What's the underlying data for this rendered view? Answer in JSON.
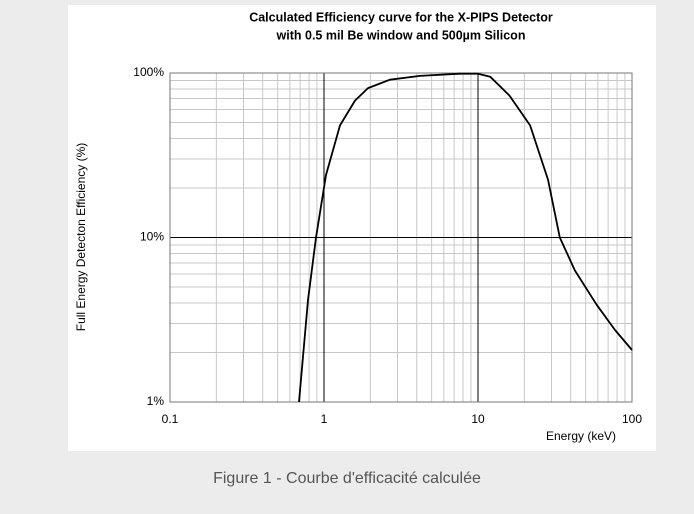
{
  "chart_data": {
    "type": "line",
    "title": [
      "Calculated Efficiency curve for the X-PIPS Detector",
      "with 0.5 mil Be window and 500µm Silicon"
    ],
    "ylabel": "Full Energy Detecton Efficiency (%)",
    "xlabel": "Energy (keV)",
    "x": [
      0.688,
      0.787,
      0.887,
      1.03,
      1.27,
      1.59,
      1.93,
      2.68,
      4.2,
      7.6,
      10,
      12,
      16,
      21.8,
      28.5,
      34,
      42.6,
      59,
      77.6,
      100
    ],
    "series": [
      {
        "name": "Efficiency",
        "color": "#000000",
        "values": [
          1,
          4.17,
          10,
          24,
          48,
          68,
          81,
          91,
          96,
          99,
          99,
          95,
          73,
          48,
          22.5,
          10,
          6.3,
          3.9,
          2.74,
          2.07
        ]
      }
    ],
    "xlim": [
      0.1,
      100
    ],
    "xticks": [
      0.1,
      1,
      10,
      100
    ],
    "ylim": [
      1,
      100
    ],
    "yticks": [
      {
        "value": 1,
        "label": "1%"
      },
      {
        "value": 10,
        "label": "10%"
      },
      {
        "value": 100,
        "label": "100%"
      }
    ],
    "xscale": "log",
    "yscale": "log",
    "grid": true,
    "minor_grid": true,
    "legend": false
  },
  "caption": "Figure 1 - Courbe d'efficacité calculée"
}
